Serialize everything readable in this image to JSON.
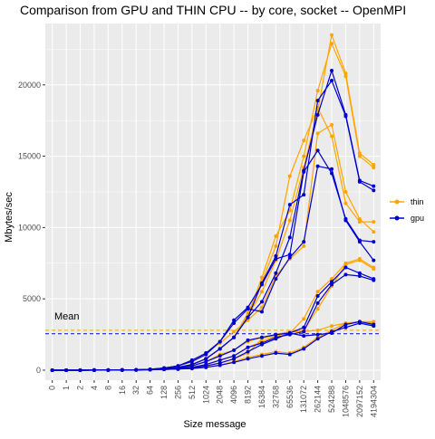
{
  "chart_data": {
    "type": "line",
    "title": "Comparison from GPU and THIN CPU -- by core, socket -- OpenMPI",
    "xlabel": "Size message",
    "ylabel": "Mbytes/sec",
    "categories": [
      "0",
      "1",
      "2",
      "4",
      "8",
      "16",
      "32",
      "64",
      "128",
      "256",
      "512",
      "1024",
      "2048",
      "4096",
      "8192",
      "16384",
      "32768",
      "65536",
      "131072",
      "262144",
      "524288",
      "1048576",
      "2097152",
      "4194304"
    ],
    "ylim": [
      -700,
      24300
    ],
    "yticks": [
      0,
      5000,
      10000,
      15000,
      20000
    ],
    "grid": true,
    "legend_position": "right",
    "annotation": "Mean",
    "colors": {
      "thin": "#FFA500",
      "gpu": "#0000CD",
      "panel": "#EBEBEB",
      "grid": "#FFFFFF"
    },
    "legend": [
      {
        "key": "thin",
        "label": "thin"
      },
      {
        "key": "gpu",
        "label": "gpu"
      }
    ],
    "mean_lines": [
      {
        "group": "thin",
        "value": 2800
      },
      {
        "group": "gpu",
        "value": 2550
      }
    ],
    "series": [
      {
        "group": "thin",
        "values": [
          0,
          0,
          1,
          3,
          6,
          12,
          25,
          50,
          100,
          200,
          400,
          800,
          1500,
          2300,
          3800,
          5500,
          7700,
          10500,
          14200,
          18200,
          23500,
          20800,
          15200,
          14400
        ]
      },
      {
        "group": "thin",
        "values": [
          0,
          0,
          1,
          3,
          6,
          12,
          25,
          50,
          100,
          200,
          400,
          800,
          1500,
          2300,
          3800,
          6500,
          9400,
          11200,
          15000,
          19600,
          22900,
          20600,
          15000,
          14200
        ]
      },
      {
        "group": "thin",
        "values": [
          0,
          0,
          1,
          3,
          6,
          12,
          25,
          50,
          100,
          200,
          400,
          800,
          1500,
          2300,
          4000,
          6200,
          8700,
          13600,
          16100,
          18400,
          16400,
          11700,
          10400,
          10400
        ]
      },
      {
        "group": "thin",
        "values": [
          0,
          0,
          1,
          3,
          6,
          12,
          25,
          60,
          150,
          300,
          700,
          1200,
          1900,
          2700,
          3500,
          4400,
          6600,
          7800,
          8700,
          16600,
          17200,
          12500,
          10600,
          9700
        ]
      },
      {
        "group": "thin",
        "values": [
          0,
          0,
          1,
          3,
          6,
          12,
          25,
          50,
          100,
          150,
          300,
          600,
          1100,
          1400,
          2000,
          2300,
          2400,
          2600,
          3600,
          5500,
          6400,
          7500,
          7800,
          7200
        ]
      },
      {
        "group": "thin",
        "values": [
          0,
          0,
          1,
          3,
          6,
          12,
          25,
          40,
          70,
          120,
          200,
          400,
          700,
          1000,
          1600,
          2000,
          2400,
          2700,
          2800,
          4300,
          5900,
          7400,
          7700,
          7100
        ]
      },
      {
        "group": "thin",
        "values": [
          0,
          0,
          1,
          3,
          6,
          10,
          20,
          30,
          50,
          80,
          150,
          300,
          500,
          800,
          1200,
          2200,
          2500,
          2700,
          2700,
          2800,
          3100,
          3300,
          3400,
          3400
        ]
      },
      {
        "group": "thin",
        "values": [
          0,
          0,
          1,
          3,
          6,
          10,
          20,
          30,
          50,
          80,
          120,
          200,
          350,
          600,
          900,
          1100,
          1300,
          1200,
          1600,
          2300,
          2800,
          3300,
          3400,
          3300
        ]
      },
      {
        "group": "gpu",
        "values": [
          0,
          0,
          1,
          3,
          6,
          12,
          25,
          50,
          100,
          200,
          400,
          800,
          1500,
          2300,
          3700,
          4800,
          6800,
          9300,
          14000,
          17900,
          21000,
          17900,
          13300,
          12900
        ]
      },
      {
        "group": "gpu",
        "values": [
          0,
          0,
          1,
          3,
          6,
          12,
          25,
          50,
          100,
          200,
          400,
          800,
          1500,
          2300,
          3700,
          6100,
          8000,
          11600,
          12300,
          18900,
          20300,
          17800,
          13200,
          12600
        ]
      },
      {
        "group": "gpu",
        "values": [
          0,
          0,
          1,
          3,
          6,
          12,
          25,
          60,
          150,
          300,
          700,
          1200,
          2000,
          3500,
          4400,
          6000,
          7800,
          8100,
          13900,
          15400,
          13800,
          10600,
          9100,
          9000
        ]
      },
      {
        "group": "gpu",
        "values": [
          0,
          0,
          1,
          3,
          6,
          12,
          25,
          60,
          150,
          300,
          600,
          1100,
          2000,
          3300,
          4300,
          4100,
          6400,
          7900,
          9000,
          14300,
          14100,
          10500,
          9000,
          7700
        ]
      },
      {
        "group": "gpu",
        "values": [
          0,
          0,
          1,
          3,
          6,
          12,
          25,
          50,
          100,
          150,
          300,
          600,
          1000,
          1400,
          2100,
          2300,
          2500,
          2600,
          3000,
          5200,
          6200,
          7200,
          6800,
          6400
        ]
      },
      {
        "group": "gpu",
        "values": [
          0,
          0,
          1,
          3,
          6,
          10,
          20,
          40,
          70,
          120,
          200,
          400,
          700,
          1000,
          1600,
          1900,
          2300,
          2500,
          2700,
          4700,
          6000,
          6700,
          6600,
          6300
        ]
      },
      {
        "group": "gpu",
        "values": [
          0,
          0,
          1,
          3,
          6,
          10,
          20,
          30,
          50,
          80,
          150,
          300,
          500,
          800,
          1300,
          1800,
          2200,
          2600,
          2400,
          2500,
          2600,
          3200,
          3400,
          3200
        ]
      },
      {
        "group": "gpu",
        "values": [
          0,
          0,
          1,
          3,
          6,
          10,
          20,
          30,
          50,
          80,
          120,
          200,
          350,
          550,
          800,
          1000,
          1200,
          1100,
          1500,
          2200,
          2700,
          3000,
          3300,
          3100
        ]
      }
    ]
  }
}
